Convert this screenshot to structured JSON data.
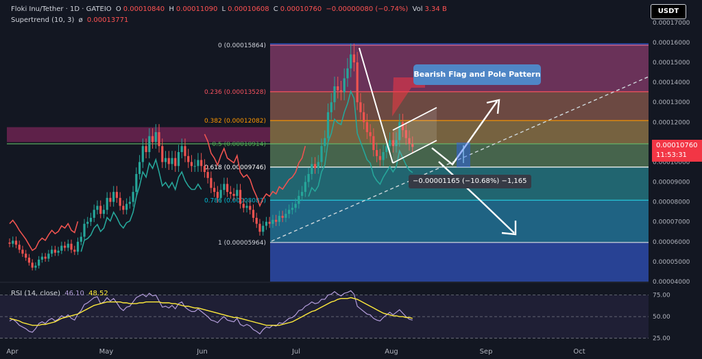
{
  "header": {
    "symbol": "Floki Inu/Tether · 1D · GATEIO",
    "open_label": "O",
    "open": "0.00010840",
    "high_label": "H",
    "high": "0.00011090",
    "low_label": "L",
    "low": "0.00010608",
    "close_label": "C",
    "close": "0.00010760",
    "change": "−0.00000080 (−0.74%)",
    "vol_label": "Vol",
    "volume": "3.34 B",
    "indicator": "Supertrend (10, 3)",
    "indicator_symbol": "ø",
    "indicator_value": "0.00013771"
  },
  "currency_button": "USDT",
  "annotation": "Bearish Flag and Pole Pattern",
  "measure_label": "−0.00001165 (−10.68%) −1,165",
  "price_tag": {
    "price": "0.00010760",
    "countdown": "11:53:31"
  },
  "rsi": {
    "label": "RSI (14, close)",
    "value": "46.10",
    "ma_value": "48.52"
  },
  "colors": {
    "background": "#131722",
    "up": "#26a69a",
    "down": "#ef5350",
    "supertrend_up_fill": "#26a69a",
    "supertrend_down_fill": "#c2185b",
    "rsi_line": "#b39ddb",
    "rsi_ma": "#ffeb3b"
  },
  "chart_data": {
    "type": "candlestick",
    "y_ticks": [
      "0.00017000",
      "0.00016000",
      "0.00015000",
      "0.00014000",
      "0.00013000",
      "0.00012000",
      "0.00011000",
      "0.00010000",
      "0.00009000",
      "0.00008000",
      "0.00007000",
      "0.00006000",
      "0.00005000",
      "0.00004000"
    ],
    "ylim": [
      4e-05,
      0.000171
    ],
    "x_ticks": [
      "Apr",
      "May",
      "Jun",
      "Jul",
      "Aug",
      "Sep",
      "Oct"
    ],
    "fib_levels": [
      {
        "ratio": "0",
        "price": "0.00015864",
        "value": 0.00015864,
        "label_color": "#d1d4dc"
      },
      {
        "ratio": "0.236",
        "price": "0.00013528",
        "value": 0.00013528,
        "label_color": "#f7525f"
      },
      {
        "ratio": "0.382",
        "price": "0.00012082",
        "value": 0.00012082,
        "label_color": "#ff9800"
      },
      {
        "ratio": "0.5",
        "price": "0.00010914",
        "value": 0.00010914,
        "label_color": "#4caf50"
      },
      {
        "ratio": "0.618",
        "price": "0.00009746",
        "value": 9.746e-05,
        "label_color": "#ffffff"
      },
      {
        "ratio": "0.786",
        "price": "0.00008083",
        "value": 8.083e-05,
        "label_color": "#00bcd4"
      },
      {
        "ratio": "1",
        "price": "0.00005964",
        "value": 5.964e-05,
        "label_color": "#d1d4dc"
      }
    ],
    "series": [
      {
        "name": "Floki Inu/Tether · 1D · GATEIO",
        "close": [
          5.9e-05,
          6.05e-05,
          5.85e-05,
          5.6e-05,
          5.4e-05,
          5.2e-05,
          4.95e-05,
          4.7e-05,
          4.8e-05,
          5.1e-05,
          5.25e-05,
          5.15e-05,
          5.4e-05,
          5.6e-05,
          5.45e-05,
          5.55e-05,
          5.8e-05,
          5.7e-05,
          5.9e-05,
          5.6e-05,
          5.5e-05,
          6e-05,
          6.25e-05,
          6.9e-05,
          7e-05,
          7.2e-05,
          7.6e-05,
          7.8e-05,
          7.4e-05,
          7.6e-05,
          8.2e-05,
          8e-05,
          8.5e-05,
          8.2e-05,
          7.8e-05,
          7.6e-05,
          7.9e-05,
          8e-05,
          8.5e-05,
          9.4e-05,
          0.0001,
          0.000108,
          0.000105,
          0.000113,
          0.00011,
          0.000115,
          0.000108,
          0.0001,
          0.000102,
          9.9e-05,
          0.000102,
          9.8e-05,
          0.000105,
          0.000108,
          0.000103,
          0.0001,
          9.8e-05,
          9.8e-05,
          0.000101,
          9.8e-05,
          9.5e-05,
          9.2e-05,
          8.7e-05,
          8.5e-05,
          8.2e-05,
          8.6e-05,
          8.9e-05,
          8.5e-05,
          8.4e-05,
          8.3e-05,
          8.6e-05,
          7.9e-05,
          7.7e-05,
          7.8e-05,
          7.6e-05,
          7.2e-05,
          6.9e-05,
          6.5e-05,
          6.8e-05,
          7e-05,
          6.9e-05,
          7.1e-05,
          7e-05,
          7.3e-05,
          7.2e-05,
          7.4e-05,
          7.6e-05,
          7.7e-05,
          7.9e-05,
          8.3e-05,
          8.5e-05,
          9e-05,
          9.4e-05,
          9.9e-05,
          9.7e-05,
          0.0001,
          0.000108,
          0.000112,
          0.000125,
          0.00013,
          0.000138,
          0.000136,
          0.000135,
          0.000142,
          0.000147,
          0.000154,
          0.00015,
          0.00013,
          0.000125,
          0.00012,
          0.000115,
          0.000113,
          0.000106,
          0.000103,
          0.000101,
          0.000105,
          0.000108,
          0.000111,
          0.000108,
          0.000111,
          0.00012,
          0.000116,
          0.000112,
          0.000109,
          0.0001076
        ]
      }
    ],
    "rsi": {
      "ylim": [
        20,
        85
      ],
      "levels": [
        75,
        50,
        25
      ],
      "level_labels": [
        "75.00",
        "50.00",
        "25.00"
      ],
      "values": [
        45,
        47,
        44,
        40,
        38,
        36,
        33,
        32,
        36,
        42,
        44,
        42,
        46,
        48,
        45,
        47,
        51,
        49,
        52,
        48,
        46,
        53,
        57,
        64,
        66,
        69,
        72,
        73,
        65,
        67,
        72,
        68,
        71,
        66,
        60,
        57,
        61,
        62,
        67,
        72,
        74,
        76,
        73,
        77,
        74,
        75,
        68,
        61,
        62,
        60,
        63,
        59,
        65,
        67,
        61,
        58,
        56,
        56,
        59,
        56,
        53,
        50,
        46,
        45,
        43,
        47,
        50,
        46,
        45,
        44,
        48,
        41,
        39,
        41,
        39,
        35,
        33,
        30,
        35,
        38,
        37,
        40,
        39,
        43,
        42,
        45,
        48,
        49,
        52,
        57,
        58,
        62,
        64,
        67,
        65,
        66,
        70,
        70,
        75,
        76,
        79,
        76,
        74,
        77,
        78,
        80,
        76,
        62,
        59,
        56,
        53,
        52,
        48,
        46,
        45,
        49,
        52,
        55,
        52,
        55,
        58,
        54,
        50,
        47,
        46
      ],
      "ma": [
        48,
        47,
        46,
        45,
        43,
        42,
        41,
        40,
        40,
        40,
        41,
        41,
        42,
        43,
        44,
        46,
        48,
        49,
        50,
        51,
        52,
        53,
        55,
        57,
        59,
        61,
        63,
        64,
        65,
        66,
        67,
        67,
        67,
        67,
        67,
        66,
        66,
        65,
        65,
        65,
        66,
        66,
        67,
        67,
        67,
        67,
        67,
        66,
        66,
        66,
        65,
        65,
        64,
        63,
        62,
        62,
        61,
        60,
        60,
        59,
        58,
        57,
        56,
        55,
        54,
        53,
        52,
        51,
        50,
        49,
        49,
        48,
        47,
        46,
        45,
        44,
        43,
        42,
        41,
        40,
        40,
        40,
        40,
        40,
        41,
        42,
        43,
        44,
        46,
        48,
        50,
        52,
        54,
        56,
        57,
        59,
        61,
        63,
        65,
        67,
        68,
        70,
        71,
        71,
        71,
        72,
        71,
        70,
        68,
        66,
        64,
        62,
        60,
        58,
        56,
        54,
        53,
        52,
        51,
        51,
        50,
        50,
        49,
        49,
        48
      ]
    },
    "supertrend_value": "0.00013771"
  }
}
